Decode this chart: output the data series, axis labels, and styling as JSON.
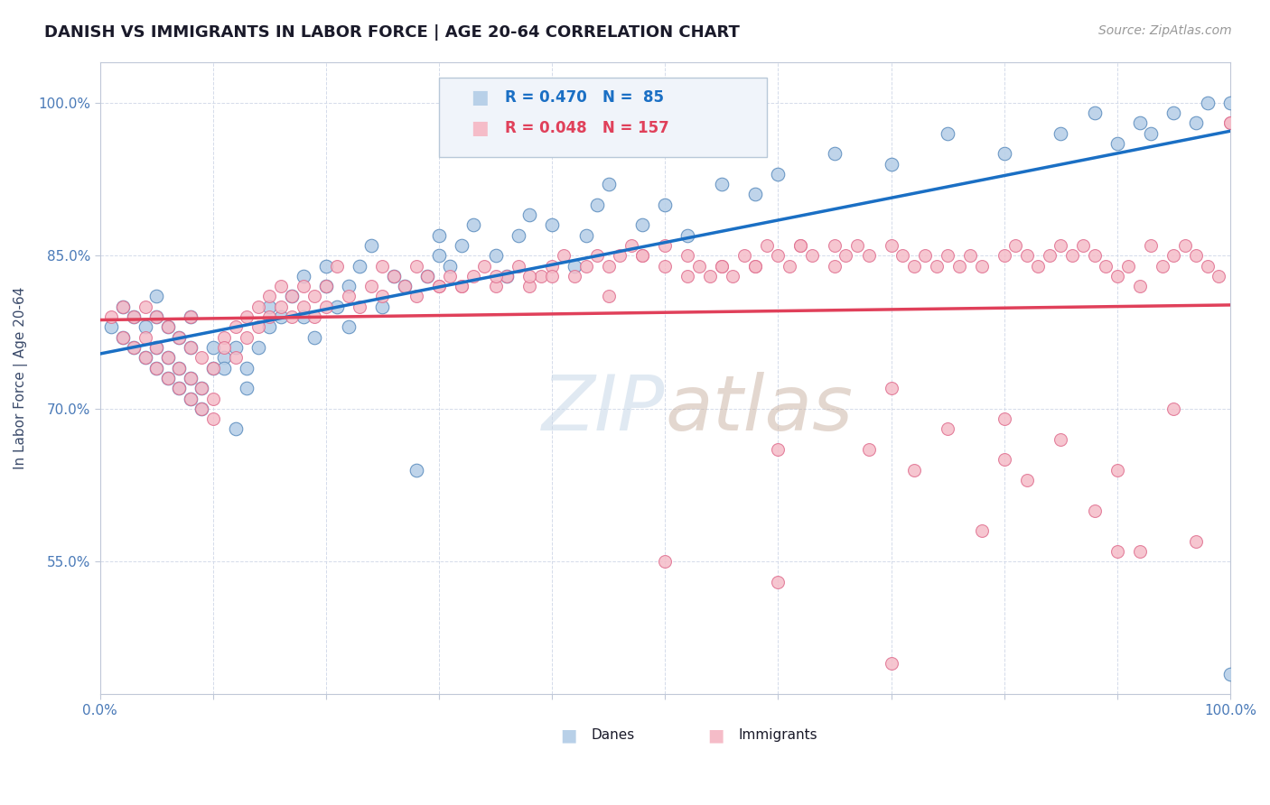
{
  "title": "DANISH VS IMMIGRANTS IN LABOR FORCE | AGE 20-64 CORRELATION CHART",
  "source_text": "Source: ZipAtlas.com",
  "ylabel": "In Labor Force | Age 20-64",
  "xlim": [
    0.0,
    1.0
  ],
  "ylim": [
    0.42,
    1.04
  ],
  "xticks": [
    0.0,
    0.1,
    0.2,
    0.3,
    0.4,
    0.5,
    0.6,
    0.7,
    0.8,
    0.9,
    1.0
  ],
  "xticklabels": [
    "0.0%",
    "",
    "",
    "",
    "",
    "",
    "",
    "",
    "",
    "",
    "100.0%"
  ],
  "yticks": [
    0.55,
    0.7,
    0.85,
    1.0
  ],
  "yticklabels": [
    "55.0%",
    "70.0%",
    "85.0%",
    "100.0%"
  ],
  "danes_color": "#b8d0e8",
  "immigrants_color": "#f5bcc8",
  "danes_edge_color": "#6090c0",
  "immigrants_edge_color": "#e07090",
  "trend_danes_color": "#1a6fc4",
  "trend_immigrants_color": "#e0405a",
  "danes_R": 0.47,
  "danes_N": 85,
  "immigrants_R": 0.048,
  "immigrants_N": 157,
  "background_color": "#ffffff",
  "grid_color": "#d0d8e8",
  "danes_x": [
    0.01,
    0.02,
    0.02,
    0.03,
    0.03,
    0.04,
    0.04,
    0.05,
    0.05,
    0.05,
    0.05,
    0.06,
    0.06,
    0.06,
    0.07,
    0.07,
    0.07,
    0.08,
    0.08,
    0.08,
    0.08,
    0.09,
    0.09,
    0.1,
    0.1,
    0.11,
    0.11,
    0.12,
    0.12,
    0.13,
    0.13,
    0.14,
    0.15,
    0.15,
    0.16,
    0.17,
    0.18,
    0.18,
    0.19,
    0.2,
    0.2,
    0.21,
    0.22,
    0.22,
    0.23,
    0.24,
    0.25,
    0.26,
    0.27,
    0.28,
    0.29,
    0.3,
    0.3,
    0.31,
    0.32,
    0.33,
    0.35,
    0.36,
    0.37,
    0.38,
    0.4,
    0.42,
    0.43,
    0.44,
    0.45,
    0.48,
    0.5,
    0.52,
    0.55,
    0.58,
    0.6,
    0.65,
    0.7,
    0.75,
    0.8,
    0.85,
    0.88,
    0.9,
    0.92,
    0.93,
    0.95,
    0.97,
    0.98,
    1.0,
    1.0
  ],
  "danes_y": [
    0.78,
    0.77,
    0.8,
    0.76,
    0.79,
    0.75,
    0.78,
    0.74,
    0.76,
    0.79,
    0.81,
    0.73,
    0.75,
    0.78,
    0.72,
    0.74,
    0.77,
    0.71,
    0.73,
    0.76,
    0.79,
    0.7,
    0.72,
    0.74,
    0.76,
    0.75,
    0.74,
    0.68,
    0.76,
    0.72,
    0.74,
    0.76,
    0.78,
    0.8,
    0.79,
    0.81,
    0.83,
    0.79,
    0.77,
    0.82,
    0.84,
    0.8,
    0.78,
    0.82,
    0.84,
    0.86,
    0.8,
    0.83,
    0.82,
    0.64,
    0.83,
    0.85,
    0.87,
    0.84,
    0.86,
    0.88,
    0.85,
    0.83,
    0.87,
    0.89,
    0.88,
    0.84,
    0.87,
    0.9,
    0.92,
    0.88,
    0.9,
    0.87,
    0.92,
    0.91,
    0.93,
    0.95,
    0.94,
    0.97,
    0.95,
    0.97,
    0.99,
    0.96,
    0.98,
    0.97,
    0.99,
    0.98,
    1.0,
    1.0,
    0.44
  ],
  "immigrants_x": [
    0.01,
    0.02,
    0.02,
    0.03,
    0.03,
    0.04,
    0.04,
    0.04,
    0.05,
    0.05,
    0.05,
    0.06,
    0.06,
    0.06,
    0.07,
    0.07,
    0.07,
    0.08,
    0.08,
    0.08,
    0.08,
    0.09,
    0.09,
    0.09,
    0.1,
    0.1,
    0.1,
    0.11,
    0.11,
    0.12,
    0.12,
    0.13,
    0.13,
    0.14,
    0.14,
    0.15,
    0.15,
    0.16,
    0.16,
    0.17,
    0.17,
    0.18,
    0.18,
    0.19,
    0.19,
    0.2,
    0.2,
    0.21,
    0.22,
    0.23,
    0.24,
    0.25,
    0.26,
    0.27,
    0.28,
    0.29,
    0.3,
    0.31,
    0.32,
    0.33,
    0.34,
    0.35,
    0.36,
    0.37,
    0.38,
    0.39,
    0.4,
    0.41,
    0.43,
    0.44,
    0.45,
    0.46,
    0.47,
    0.48,
    0.5,
    0.52,
    0.53,
    0.54,
    0.55,
    0.56,
    0.57,
    0.58,
    0.59,
    0.6,
    0.61,
    0.62,
    0.63,
    0.65,
    0.66,
    0.67,
    0.68,
    0.7,
    0.71,
    0.72,
    0.73,
    0.74,
    0.75,
    0.76,
    0.77,
    0.78,
    0.8,
    0.81,
    0.82,
    0.83,
    0.84,
    0.85,
    0.86,
    0.87,
    0.88,
    0.89,
    0.9,
    0.91,
    0.92,
    0.93,
    0.94,
    0.95,
    0.96,
    0.97,
    0.98,
    0.99,
    1.0,
    0.5,
    0.38,
    0.28,
    0.32,
    0.55,
    0.6,
    0.48,
    0.42,
    0.65,
    0.7,
    0.35,
    0.75,
    0.8,
    0.85,
    0.9,
    0.95,
    0.25,
    0.3,
    0.4,
    0.45,
    0.52,
    0.58,
    0.62,
    0.68,
    0.72,
    0.78,
    0.82,
    0.88,
    0.92,
    0.97,
    0.5,
    0.6,
    0.7,
    0.8,
    0.9,
    1.0
  ],
  "immigrants_y": [
    0.79,
    0.77,
    0.8,
    0.76,
    0.79,
    0.75,
    0.77,
    0.8,
    0.74,
    0.76,
    0.79,
    0.73,
    0.75,
    0.78,
    0.72,
    0.74,
    0.77,
    0.71,
    0.73,
    0.76,
    0.79,
    0.7,
    0.72,
    0.75,
    0.69,
    0.71,
    0.74,
    0.77,
    0.76,
    0.75,
    0.78,
    0.77,
    0.79,
    0.78,
    0.8,
    0.79,
    0.81,
    0.8,
    0.82,
    0.79,
    0.81,
    0.8,
    0.82,
    0.79,
    0.81,
    0.8,
    0.82,
    0.84,
    0.81,
    0.8,
    0.82,
    0.81,
    0.83,
    0.82,
    0.81,
    0.83,
    0.82,
    0.83,
    0.82,
    0.83,
    0.84,
    0.82,
    0.83,
    0.84,
    0.82,
    0.83,
    0.84,
    0.85,
    0.84,
    0.85,
    0.84,
    0.85,
    0.86,
    0.85,
    0.84,
    0.85,
    0.84,
    0.83,
    0.84,
    0.83,
    0.85,
    0.84,
    0.86,
    0.85,
    0.84,
    0.86,
    0.85,
    0.84,
    0.85,
    0.86,
    0.85,
    0.86,
    0.85,
    0.84,
    0.85,
    0.84,
    0.85,
    0.84,
    0.85,
    0.84,
    0.85,
    0.86,
    0.85,
    0.84,
    0.85,
    0.86,
    0.85,
    0.86,
    0.85,
    0.84,
    0.83,
    0.84,
    0.82,
    0.86,
    0.84,
    0.85,
    0.86,
    0.85,
    0.84,
    0.83,
    0.98,
    0.86,
    0.83,
    0.84,
    0.82,
    0.84,
    0.66,
    0.85,
    0.83,
    0.86,
    0.72,
    0.83,
    0.68,
    0.65,
    0.67,
    0.64,
    0.7,
    0.84,
    0.82,
    0.83,
    0.81,
    0.83,
    0.84,
    0.86,
    0.66,
    0.64,
    0.58,
    0.63,
    0.6,
    0.56,
    0.57,
    0.55,
    0.53,
    0.45,
    0.69,
    0.56,
    0.98
  ]
}
